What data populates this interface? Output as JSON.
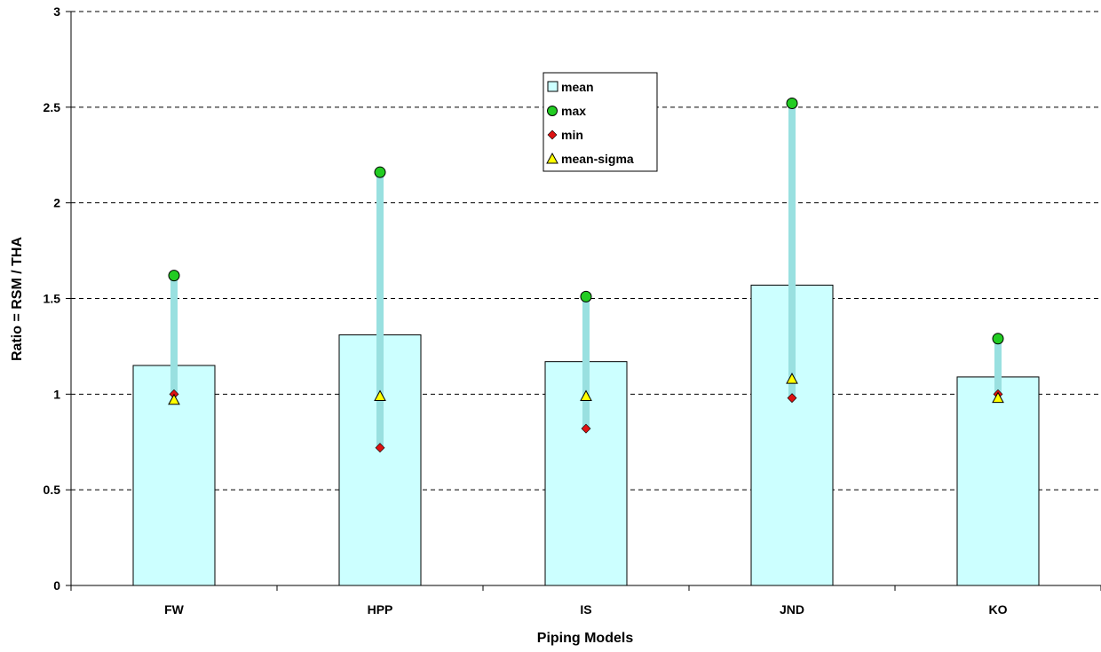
{
  "chart_data": {
    "type": "bar",
    "categories": [
      "FW",
      "HPP",
      "IS",
      "JND",
      "KO"
    ],
    "series": [
      {
        "name": "mean",
        "marker": "bar",
        "values": [
          1.15,
          1.31,
          1.17,
          1.57,
          1.09
        ]
      },
      {
        "name": "max",
        "marker": "circle",
        "values": [
          1.62,
          2.16,
          1.51,
          2.52,
          1.29
        ]
      },
      {
        "name": "min",
        "marker": "diamond",
        "values": [
          1.0,
          0.72,
          0.82,
          0.98,
          1.0
        ]
      },
      {
        "name": "mean-sigma",
        "marker": "triangle",
        "values": [
          0.97,
          0.99,
          0.99,
          1.08,
          0.98
        ]
      }
    ],
    "xlabel": "Piping Models",
    "ylabel": "Ratio = RSM / THA",
    "ylim": [
      0,
      3
    ],
    "yticks": [
      "0",
      "0.5",
      "1",
      "1.5",
      "2",
      "2.5",
      "3"
    ],
    "grid": "horizontal dashed",
    "legend_position": "top-center",
    "colors": {
      "bar_fill": "#ccffff",
      "range_line": "#99e0e0",
      "max_marker": "#22cc22",
      "min_marker": "#dd1111",
      "mean_sigma_marker": "#ffff00"
    }
  }
}
